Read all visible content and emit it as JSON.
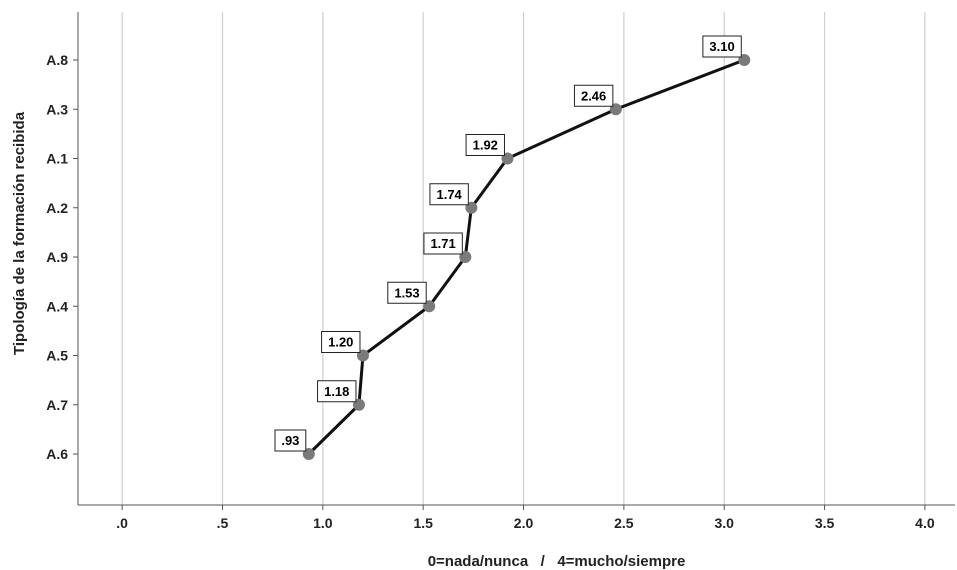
{
  "chart_data": {
    "type": "line",
    "title": "",
    "xlabel": "0=nada/nunca   /   4=mucho/siempre",
    "ylabel": "Tipología de la formación recibida",
    "xlim": [
      -0.22,
      4.15
    ],
    "x_ticks": [
      0,
      0.5,
      1.0,
      1.5,
      2.0,
      2.5,
      3.0,
      3.5,
      4.0
    ],
    "x_tick_labels": [
      ".0",
      ".5",
      "1.0",
      "1.5",
      "2.0",
      "2.5",
      "3.0",
      "3.5",
      "4.0"
    ],
    "categories": [
      "A.8",
      "A.3",
      "A.1",
      "A.2",
      "A.9",
      "A.4",
      "A.5",
      "A.7",
      "A.6"
    ],
    "series": [
      {
        "values": [
          3.1,
          2.46,
          1.92,
          1.74,
          1.71,
          1.53,
          1.2,
          1.18,
          0.93
        ],
        "labels": [
          "3.10",
          "2.46",
          "1.92",
          "1.74",
          "1.71",
          "1.53",
          "1.20",
          "1.18",
          ".93"
        ]
      }
    ],
    "grid": "vertical",
    "colors": {
      "line": "#111111",
      "marker": "#7a7a7a",
      "grid": "#cfcfcf"
    }
  }
}
